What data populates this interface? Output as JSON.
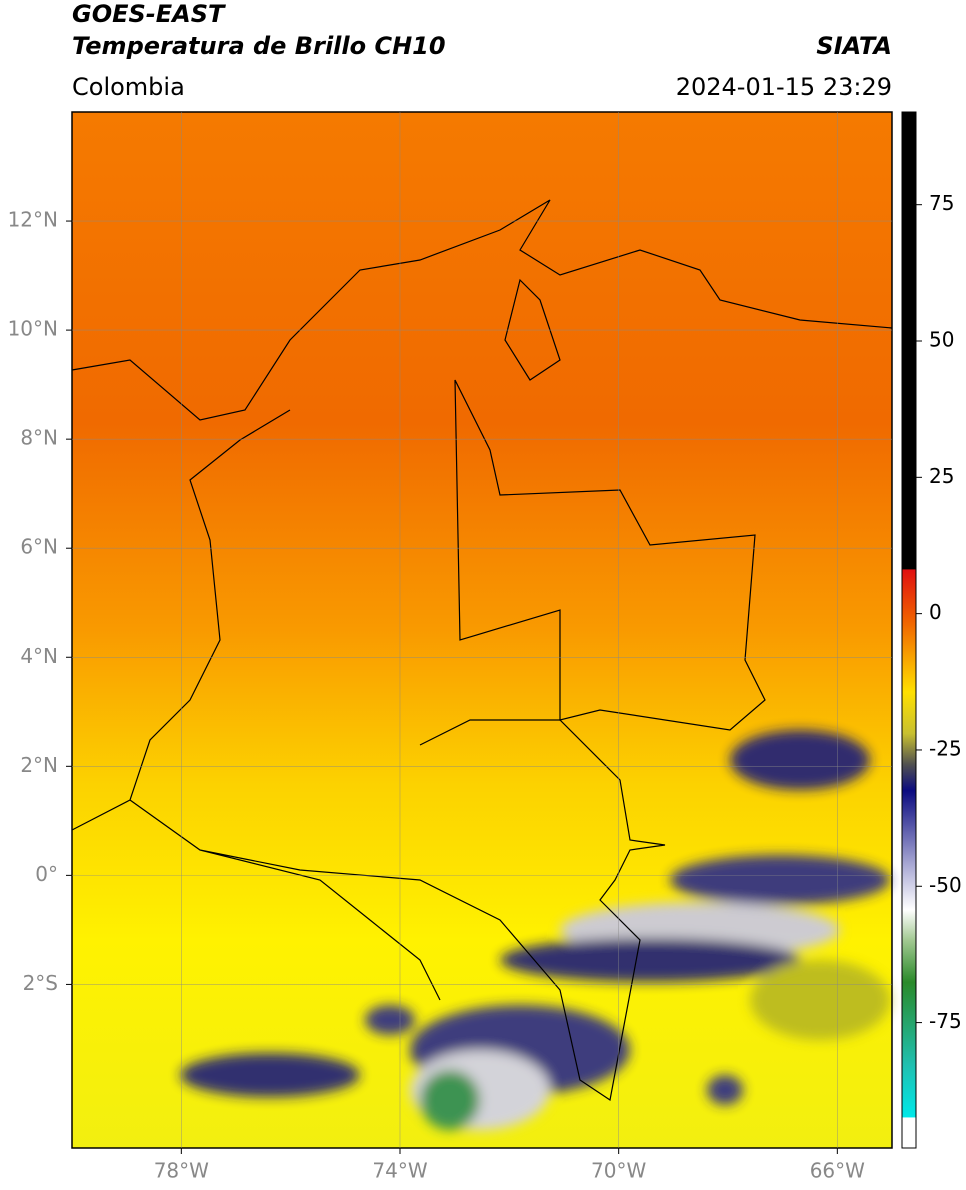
{
  "header": {
    "title": "GOES-EAST",
    "subtitle": "Temperatura de Brillo CH10",
    "region": "Colombia",
    "source": "SIATA",
    "datetime": "2024-01-15 23:29"
  },
  "map": {
    "lonlim": [
      -80,
      -65
    ],
    "latlim": [
      -5,
      14
    ],
    "lon_ticks": [
      {
        "value": -78,
        "label": "78°W"
      },
      {
        "value": -74,
        "label": "74°W"
      },
      {
        "value": -70,
        "label": "70°W"
      },
      {
        "value": -66,
        "label": "66°W"
      }
    ],
    "lat_ticks": [
      {
        "value": 12,
        "label": "12°N"
      },
      {
        "value": 10,
        "label": "10°N"
      },
      {
        "value": 8,
        "label": "8°N"
      },
      {
        "value": 6,
        "label": "6°N"
      },
      {
        "value": 4,
        "label": "4°N"
      },
      {
        "value": 2,
        "label": "2°N"
      },
      {
        "value": 0,
        "label": "0°"
      },
      {
        "value": -2,
        "label": "2°S"
      }
    ]
  },
  "colorbar": {
    "lim": [
      -98,
      92
    ],
    "ticks": [
      75,
      50,
      25,
      0,
      -25,
      -50,
      -75
    ]
  }
}
